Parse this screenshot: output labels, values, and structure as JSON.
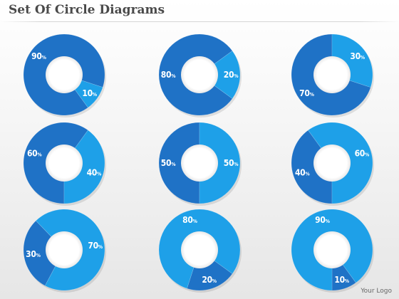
{
  "title": "Set Of Circle Diagrams",
  "logo": "Your Logo",
  "colors": {
    "dark": "#1f72c6",
    "light": "#1ea0e8",
    "hole": "#ffffff",
    "label": "#ffffff",
    "background": "#eeeeee"
  },
  "rings": [
    {
      "name": "ring-90-10",
      "slices": [
        {
          "label": "90%",
          "value": 90,
          "tone": "dark"
        },
        {
          "label": "10%",
          "value": 10,
          "tone": "light"
        }
      ]
    },
    {
      "name": "ring-80-20",
      "slices": [
        {
          "label": "80%",
          "value": 80,
          "tone": "dark"
        },
        {
          "label": "20%",
          "value": 20,
          "tone": "light"
        }
      ]
    },
    {
      "name": "ring-70-30",
      "slices": [
        {
          "label": "70%",
          "value": 70,
          "tone": "dark"
        },
        {
          "label": "30%",
          "value": 30,
          "tone": "light"
        }
      ]
    },
    {
      "name": "ring-60-40",
      "slices": [
        {
          "label": "60%",
          "value": 60,
          "tone": "dark"
        },
        {
          "label": "40%",
          "value": 40,
          "tone": "light"
        }
      ]
    },
    {
      "name": "ring-50-50",
      "slices": [
        {
          "label": "50%",
          "value": 50,
          "tone": "dark"
        },
        {
          "label": "50%",
          "value": 50,
          "tone": "light"
        }
      ]
    },
    {
      "name": "ring-40-60",
      "slices": [
        {
          "label": "40%",
          "value": 40,
          "tone": "dark"
        },
        {
          "label": "60%",
          "value": 60,
          "tone": "light"
        }
      ]
    },
    {
      "name": "ring-30-70",
      "slices": [
        {
          "label": "30%",
          "value": 30,
          "tone": "dark"
        },
        {
          "label": "70%",
          "value": 70,
          "tone": "light"
        }
      ]
    },
    {
      "name": "ring-20-80",
      "slices": [
        {
          "label": "20%",
          "value": 20,
          "tone": "dark"
        },
        {
          "label": "80%",
          "value": 80,
          "tone": "light"
        }
      ]
    },
    {
      "name": "ring-10-90",
      "slices": [
        {
          "label": "10%",
          "value": 10,
          "tone": "dark"
        },
        {
          "label": "90%",
          "value": 90,
          "tone": "light"
        }
      ]
    }
  ]
}
